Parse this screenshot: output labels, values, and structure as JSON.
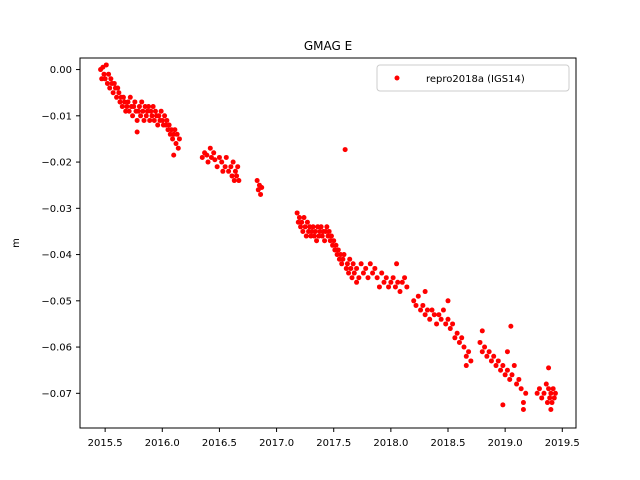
{
  "chart_data": {
    "type": "scatter",
    "title": "GMAG E",
    "xlabel": "",
    "ylabel": "m",
    "xlim": [
      2015.28,
      2019.62
    ],
    "ylim": [
      -0.0775,
      0.0025
    ],
    "x_ticks": [
      2015.5,
      2016.0,
      2016.5,
      2017.0,
      2017.5,
      2018.0,
      2018.5,
      2019.0,
      2019.5
    ],
    "x_tick_labels": [
      "2015.5",
      "2016.0",
      "2016.5",
      "2017.0",
      "2017.5",
      "2018.0",
      "2018.5",
      "2019.0",
      "2019.5"
    ],
    "y_ticks": [
      0.0,
      -0.01,
      -0.02,
      -0.03,
      -0.04,
      -0.05,
      -0.06,
      -0.07
    ],
    "y_tick_labels": [
      "0.00",
      "−0.01",
      "−0.02",
      "−0.03",
      "−0.04",
      "−0.05",
      "−0.06",
      "−0.07"
    ],
    "grid": false,
    "legend_position": "top-right",
    "series": [
      {
        "name": "repro2018a (IGS14)",
        "color": "#ff0000",
        "marker": "circle",
        "points": [
          [
            2015.46,
            0.0
          ],
          [
            2015.47,
            -0.002
          ],
          [
            2015.48,
            0.0005
          ],
          [
            2015.49,
            -0.001
          ],
          [
            2015.5,
            -0.002
          ],
          [
            2015.51,
            0.001
          ],
          [
            2015.52,
            -0.003
          ],
          [
            2015.53,
            -0.001
          ],
          [
            2015.54,
            -0.004
          ],
          [
            2015.55,
            -0.002
          ],
          [
            2015.56,
            -0.003
          ],
          [
            2015.57,
            -0.005
          ],
          [
            2015.58,
            -0.003
          ],
          [
            2015.59,
            -0.004
          ],
          [
            2015.6,
            -0.006
          ],
          [
            2015.61,
            -0.004
          ],
          [
            2015.62,
            -0.005
          ],
          [
            2015.63,
            -0.007
          ],
          [
            2015.64,
            -0.006
          ],
          [
            2015.65,
            -0.008
          ],
          [
            2015.66,
            -0.006
          ],
          [
            2015.67,
            -0.007
          ],
          [
            2015.68,
            -0.009
          ],
          [
            2015.69,
            -0.008
          ],
          [
            2015.7,
            -0.007
          ],
          [
            2015.71,
            -0.009
          ],
          [
            2015.72,
            -0.006
          ],
          [
            2015.73,
            -0.008
          ],
          [
            2015.74,
            -0.01
          ],
          [
            2015.75,
            -0.008
          ],
          [
            2015.76,
            -0.007
          ],
          [
            2015.77,
            -0.009
          ],
          [
            2015.78,
            -0.011
          ],
          [
            2015.79,
            -0.009
          ],
          [
            2015.8,
            -0.008
          ],
          [
            2015.81,
            -0.01
          ],
          [
            2015.82,
            -0.007
          ],
          [
            2015.83,
            -0.009
          ],
          [
            2015.84,
            -0.011
          ],
          [
            2015.85,
            -0.008
          ],
          [
            2015.86,
            -0.01
          ],
          [
            2015.87,
            -0.009
          ],
          [
            2015.88,
            -0.008
          ],
          [
            2015.89,
            -0.011
          ],
          [
            2015.9,
            -0.009
          ],
          [
            2015.91,
            -0.01
          ],
          [
            2015.92,
            -0.008
          ],
          [
            2015.93,
            -0.011
          ],
          [
            2015.94,
            -0.009
          ],
          [
            2015.95,
            -0.01
          ],
          [
            2015.96,
            -0.012
          ],
          [
            2015.97,
            -0.01
          ],
          [
            2015.98,
            -0.011
          ],
          [
            2015.99,
            -0.009
          ],
          [
            2016.0,
            -0.011
          ],
          [
            2016.01,
            -0.012
          ],
          [
            2016.02,
            -0.01
          ],
          [
            2016.03,
            -0.012
          ],
          [
            2016.04,
            -0.011
          ],
          [
            2016.05,
            -0.013
          ],
          [
            2016.06,
            -0.012
          ],
          [
            2016.07,
            -0.014
          ],
          [
            2016.08,
            -0.013
          ],
          [
            2016.09,
            -0.015
          ],
          [
            2016.1,
            -0.014
          ],
          [
            2016.11,
            -0.013
          ],
          [
            2016.12,
            -0.016
          ],
          [
            2016.13,
            -0.014
          ],
          [
            2016.14,
            -0.017
          ],
          [
            2016.15,
            -0.015
          ],
          [
            2015.78,
            -0.0135
          ],
          [
            2016.1,
            -0.0185
          ],
          [
            2016.35,
            -0.019
          ],
          [
            2016.37,
            -0.018
          ],
          [
            2016.39,
            -0.0185
          ],
          [
            2016.4,
            -0.02
          ],
          [
            2016.42,
            -0.017
          ],
          [
            2016.43,
            -0.019
          ],
          [
            2016.45,
            -0.018
          ],
          [
            2016.46,
            -0.0195
          ],
          [
            2016.48,
            -0.021
          ],
          [
            2016.5,
            -0.019
          ],
          [
            2016.52,
            -0.02
          ],
          [
            2016.53,
            -0.022
          ],
          [
            2016.55,
            -0.021
          ],
          [
            2016.56,
            -0.019
          ],
          [
            2016.58,
            -0.022
          ],
          [
            2016.6,
            -0.021
          ],
          [
            2016.61,
            -0.023
          ],
          [
            2016.62,
            -0.02
          ],
          [
            2016.63,
            -0.024
          ],
          [
            2016.64,
            -0.022
          ],
          [
            2016.65,
            -0.023
          ],
          [
            2016.66,
            -0.021
          ],
          [
            2016.67,
            -0.024
          ],
          [
            2016.83,
            -0.024
          ],
          [
            2016.84,
            -0.026
          ],
          [
            2016.85,
            -0.025
          ],
          [
            2016.86,
            -0.027
          ],
          [
            2016.87,
            -0.0255
          ],
          [
            2017.18,
            -0.031
          ],
          [
            2017.19,
            -0.033
          ],
          [
            2017.2,
            -0.032
          ],
          [
            2017.21,
            -0.034
          ],
          [
            2017.22,
            -0.033
          ],
          [
            2017.23,
            -0.035
          ],
          [
            2017.24,
            -0.032
          ],
          [
            2017.25,
            -0.034
          ],
          [
            2017.26,
            -0.036
          ],
          [
            2017.27,
            -0.033
          ],
          [
            2017.28,
            -0.035
          ],
          [
            2017.29,
            -0.034
          ],
          [
            2017.3,
            -0.036
          ],
          [
            2017.31,
            -0.035
          ],
          [
            2017.32,
            -0.034
          ],
          [
            2017.33,
            -0.036
          ],
          [
            2017.34,
            -0.035
          ],
          [
            2017.35,
            -0.037
          ],
          [
            2017.36,
            -0.034
          ],
          [
            2017.37,
            -0.036
          ],
          [
            2017.38,
            -0.035
          ],
          [
            2017.39,
            -0.034
          ],
          [
            2017.4,
            -0.036
          ],
          [
            2017.41,
            -0.035
          ],
          [
            2017.42,
            -0.037
          ],
          [
            2017.43,
            -0.035
          ],
          [
            2017.44,
            -0.034
          ],
          [
            2017.45,
            -0.036
          ],
          [
            2017.46,
            -0.035
          ],
          [
            2017.47,
            -0.037
          ],
          [
            2017.48,
            -0.036
          ],
          [
            2017.49,
            -0.038
          ],
          [
            2017.5,
            -0.037
          ],
          [
            2017.51,
            -0.039
          ],
          [
            2017.52,
            -0.038
          ],
          [
            2017.53,
            -0.04
          ],
          [
            2017.54,
            -0.039
          ],
          [
            2017.55,
            -0.041
          ],
          [
            2017.56,
            -0.04
          ],
          [
            2017.57,
            -0.042
          ],
          [
            2017.58,
            -0.041
          ],
          [
            2017.59,
            -0.04
          ],
          [
            2017.6,
            -0.0173
          ],
          [
            2017.61,
            -0.043
          ],
          [
            2017.62,
            -0.042
          ],
          [
            2017.63,
            -0.044
          ],
          [
            2017.64,
            -0.041
          ],
          [
            2017.65,
            -0.043
          ],
          [
            2017.66,
            -0.045
          ],
          [
            2017.67,
            -0.042
          ],
          [
            2017.68,
            -0.044
          ],
          [
            2017.7,
            -0.043
          ],
          [
            2017.72,
            -0.045
          ],
          [
            2017.74,
            -0.042
          ],
          [
            2017.76,
            -0.044
          ],
          [
            2017.78,
            -0.043
          ],
          [
            2017.8,
            -0.045
          ],
          [
            2017.82,
            -0.042
          ],
          [
            2017.84,
            -0.044
          ],
          [
            2017.86,
            -0.043
          ],
          [
            2017.88,
            -0.045
          ],
          [
            2017.9,
            -0.047
          ],
          [
            2017.92,
            -0.044
          ],
          [
            2017.94,
            -0.046
          ],
          [
            2017.96,
            -0.045
          ],
          [
            2017.98,
            -0.047
          ],
          [
            2018.0,
            -0.046
          ],
          [
            2018.02,
            -0.045
          ],
          [
            2018.04,
            -0.047
          ],
          [
            2018.06,
            -0.046
          ],
          [
            2018.08,
            -0.048
          ],
          [
            2018.1,
            -0.046
          ],
          [
            2018.12,
            -0.045
          ],
          [
            2018.14,
            -0.047
          ],
          [
            2017.7,
            -0.046
          ],
          [
            2018.05,
            -0.042
          ],
          [
            2018.2,
            -0.05
          ],
          [
            2018.22,
            -0.051
          ],
          [
            2018.24,
            -0.049
          ],
          [
            2018.26,
            -0.052
          ],
          [
            2018.28,
            -0.051
          ],
          [
            2018.3,
            -0.053
          ],
          [
            2018.32,
            -0.052
          ],
          [
            2018.34,
            -0.054
          ],
          [
            2018.36,
            -0.052
          ],
          [
            2018.38,
            -0.053
          ],
          [
            2018.4,
            -0.055
          ],
          [
            2018.42,
            -0.053
          ],
          [
            2018.44,
            -0.054
          ],
          [
            2018.46,
            -0.052
          ],
          [
            2018.48,
            -0.055
          ],
          [
            2018.5,
            -0.054
          ],
          [
            2018.52,
            -0.056
          ],
          [
            2018.54,
            -0.055
          ],
          [
            2018.56,
            -0.058
          ],
          [
            2018.58,
            -0.057
          ],
          [
            2018.6,
            -0.059
          ],
          [
            2018.62,
            -0.058
          ],
          [
            2018.64,
            -0.06
          ],
          [
            2018.66,
            -0.062
          ],
          [
            2018.68,
            -0.061
          ],
          [
            2018.7,
            -0.063
          ],
          [
            2018.3,
            -0.048
          ],
          [
            2018.5,
            -0.05
          ],
          [
            2018.66,
            -0.064
          ],
          [
            2018.78,
            -0.059
          ],
          [
            2018.8,
            -0.061
          ],
          [
            2018.82,
            -0.06
          ],
          [
            2018.84,
            -0.062
          ],
          [
            2018.86,
            -0.061
          ],
          [
            2018.88,
            -0.063
          ],
          [
            2018.9,
            -0.062
          ],
          [
            2018.92,
            -0.064
          ],
          [
            2018.94,
            -0.063
          ],
          [
            2018.96,
            -0.065
          ],
          [
            2018.98,
            -0.064
          ],
          [
            2019.0,
            -0.066
          ],
          [
            2019.02,
            -0.065
          ],
          [
            2019.04,
            -0.067
          ],
          [
            2019.06,
            -0.066
          ],
          [
            2019.08,
            -0.064
          ],
          [
            2019.1,
            -0.068
          ],
          [
            2019.12,
            -0.067
          ],
          [
            2019.14,
            -0.069
          ],
          [
            2019.16,
            -0.072
          ],
          [
            2019.18,
            -0.07
          ],
          [
            2018.8,
            -0.0565
          ],
          [
            2019.05,
            -0.0555
          ],
          [
            2018.98,
            -0.0725
          ],
          [
            2019.16,
            -0.0735
          ],
          [
            2019.02,
            -0.061
          ],
          [
            2019.28,
            -0.07
          ],
          [
            2019.3,
            -0.069
          ],
          [
            2019.32,
            -0.071
          ],
          [
            2019.34,
            -0.07
          ],
          [
            2019.36,
            -0.068
          ],
          [
            2019.37,
            -0.072
          ],
          [
            2019.38,
            -0.069
          ],
          [
            2019.39,
            -0.071
          ],
          [
            2019.4,
            -0.07
          ],
          [
            2019.41,
            -0.072
          ],
          [
            2019.42,
            -0.069
          ],
          [
            2019.43,
            -0.071
          ],
          [
            2019.44,
            -0.07
          ],
          [
            2019.38,
            -0.0645
          ],
          [
            2019.4,
            -0.0735
          ]
        ]
      }
    ]
  }
}
